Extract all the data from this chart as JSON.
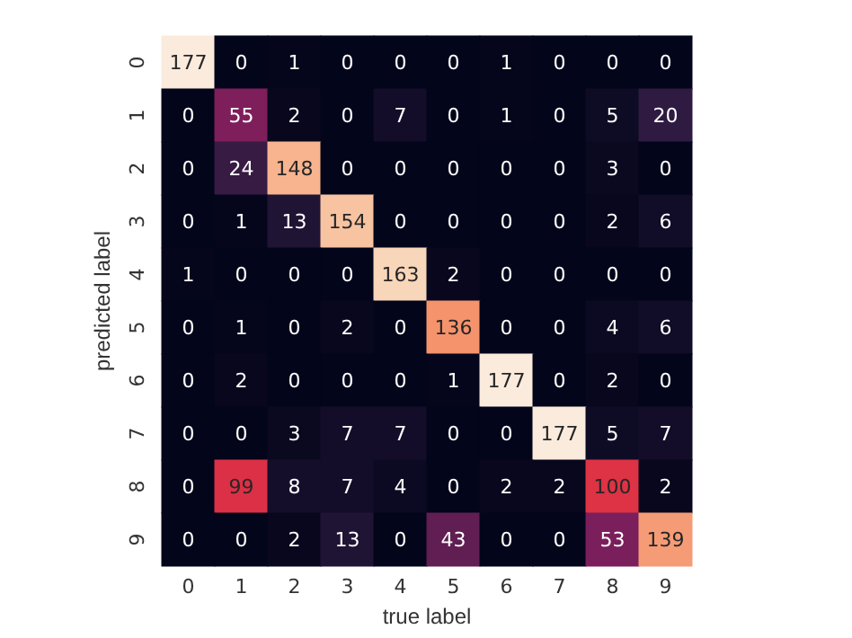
{
  "chart_data": {
    "type": "heatmap",
    "xlabel": "true label",
    "ylabel": "predicted label",
    "categories": [
      "0",
      "1",
      "2",
      "3",
      "4",
      "5",
      "6",
      "7",
      "8",
      "9"
    ],
    "y_categories": [
      "0",
      "1",
      "2",
      "3",
      "4",
      "5",
      "6",
      "7",
      "8",
      "9"
    ],
    "data_labels": true,
    "cells": [
      [
        177,
        0,
        1,
        0,
        0,
        0,
        1,
        0,
        0,
        0
      ],
      [
        0,
        55,
        2,
        0,
        7,
        0,
        1,
        0,
        5,
        20
      ],
      [
        0,
        24,
        148,
        0,
        0,
        0,
        0,
        0,
        3,
        0
      ],
      [
        0,
        1,
        13,
        154,
        0,
        0,
        0,
        0,
        2,
        6
      ],
      [
        1,
        0,
        0,
        0,
        163,
        2,
        0,
        0,
        0,
        0
      ],
      [
        0,
        1,
        0,
        2,
        0,
        136,
        0,
        0,
        4,
        6
      ],
      [
        0,
        2,
        0,
        0,
        0,
        1,
        177,
        0,
        2,
        0
      ],
      [
        0,
        0,
        3,
        7,
        7,
        0,
        0,
        177,
        5,
        7
      ],
      [
        0,
        99,
        8,
        7,
        4,
        0,
        2,
        2,
        100,
        2
      ],
      [
        0,
        0,
        2,
        13,
        0,
        43,
        0,
        0,
        53,
        139
      ]
    ]
  }
}
